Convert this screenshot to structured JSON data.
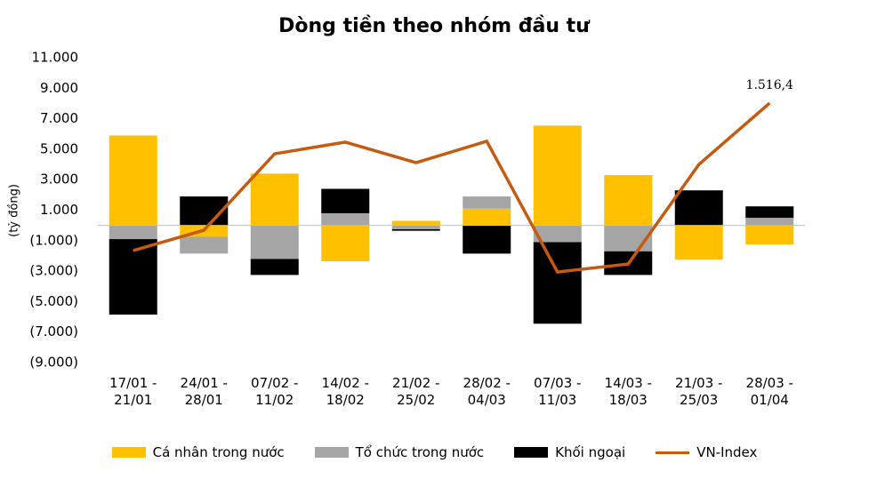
{
  "chart_data": {
    "type": "bar",
    "stacked": true,
    "title": "Dòng tiền theo nhóm đầu tư",
    "y_label": "(tỷ đồng)",
    "categories": [
      "17/01 - 21/01",
      "24/01 - 28/01",
      "07/02 - 11/02",
      "14/02 - 18/02",
      "21/02 - 25/02",
      "28/02 - 04/03",
      "07/03 - 11/03",
      "14/03 - 18/03",
      "21/03 - 25/03",
      "28/03 - 01/04"
    ],
    "series": [
      {
        "name": "Cá nhân trong nước",
        "color": "#ffc000",
        "values": [
          5900,
          -750,
          3400,
          -2350,
          300,
          1100,
          6550,
          3300,
          -2250,
          -1250
        ]
      },
      {
        "name": "Tổ chức trong nước",
        "color": "#a5a5a5",
        "values": [
          -900,
          -1100,
          -2200,
          800,
          -250,
          800,
          -1100,
          -1700,
          0,
          500
        ]
      },
      {
        "name": "Khối ngoại",
        "color": "#000000",
        "values": [
          -4950,
          1900,
          -1050,
          1600,
          -100,
          -1850,
          -5350,
          -1550,
          2300,
          750
        ]
      },
      {
        "name": "VN-Index",
        "color": "#c55a11",
        "type": "line",
        "axis": "y2",
        "values": [
          1433.2,
          1444.7,
          1487.8,
          1494.4,
          1482.8,
          1494.9,
          1421.1,
          1425.6,
          1481.8,
          1516.4
        ],
        "value_labels": [
          null,
          null,
          null,
          null,
          null,
          null,
          null,
          null,
          null,
          "1.516,4"
        ]
      }
    ],
    "ylim": [
      -9000,
      11000
    ],
    "yticks": [
      {
        "value": 11000,
        "label": "11.000"
      },
      {
        "value": 9000,
        "label": "9.000"
      },
      {
        "value": 7000,
        "label": "7.000"
      },
      {
        "value": 5000,
        "label": "5.000"
      },
      {
        "value": 3000,
        "label": "3.000"
      },
      {
        "value": 1000,
        "label": "1.000"
      },
      {
        "value": -1000,
        "label": "(1.000)"
      },
      {
        "value": -3000,
        "label": "(3.000)"
      },
      {
        "value": -5000,
        "label": "(5.000)"
      },
      {
        "value": -7000,
        "label": "(7.000)"
      },
      {
        "value": -9000,
        "label": "(9.000)"
      }
    ],
    "y2lim": [
      1370,
      1542
    ],
    "legend": "bottom"
  }
}
